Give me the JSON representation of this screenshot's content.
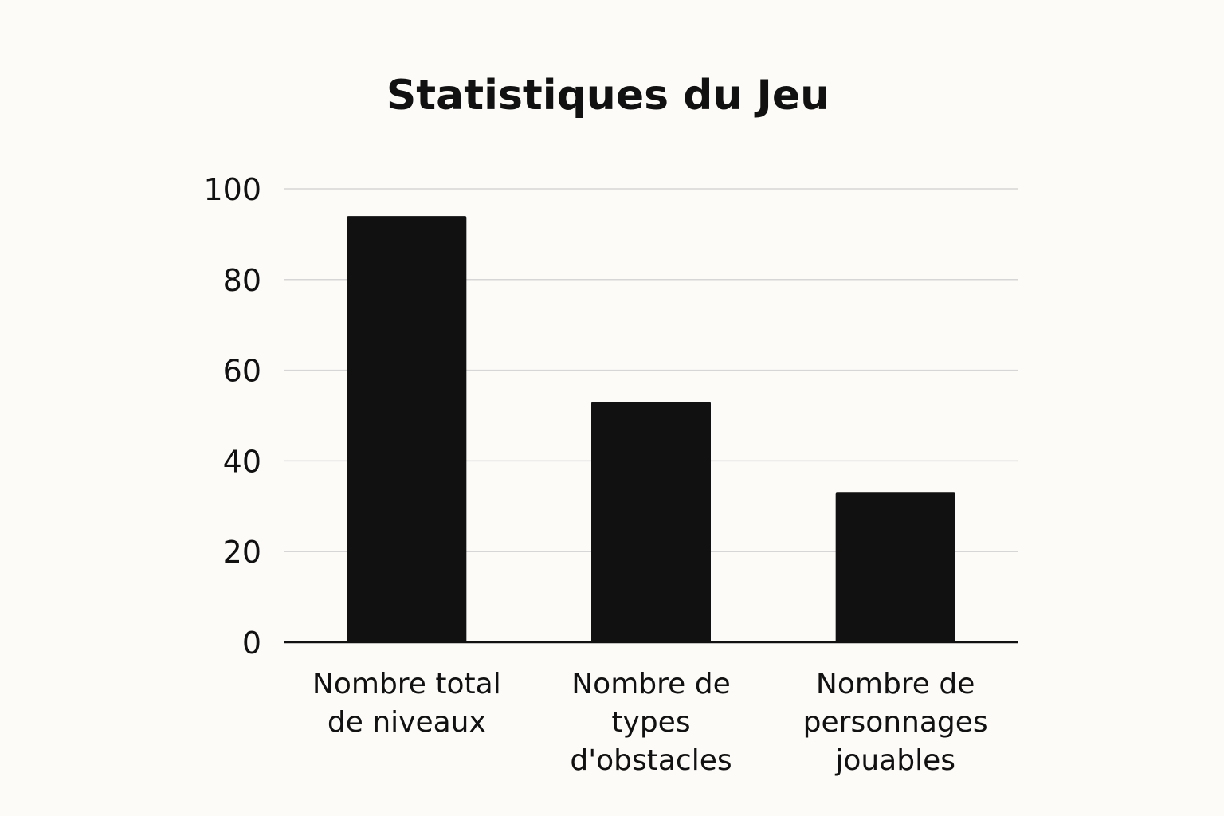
{
  "chart_data": {
    "type": "bar",
    "title": "Statistiques du Jeu",
    "xlabel": "",
    "ylabel": "",
    "categories": [
      [
        "Nombre total",
        "de niveaux"
      ],
      [
        "Nombre de",
        "types",
        "d'obstacles"
      ],
      [
        "Nombre de",
        "personnages",
        "jouables"
      ]
    ],
    "values": [
      94,
      53,
      33
    ],
    "ylim": [
      0,
      100
    ],
    "yticks": [
      0,
      20,
      40,
      60,
      80,
      100
    ],
    "grid": true,
    "bar_color": "#111111"
  }
}
